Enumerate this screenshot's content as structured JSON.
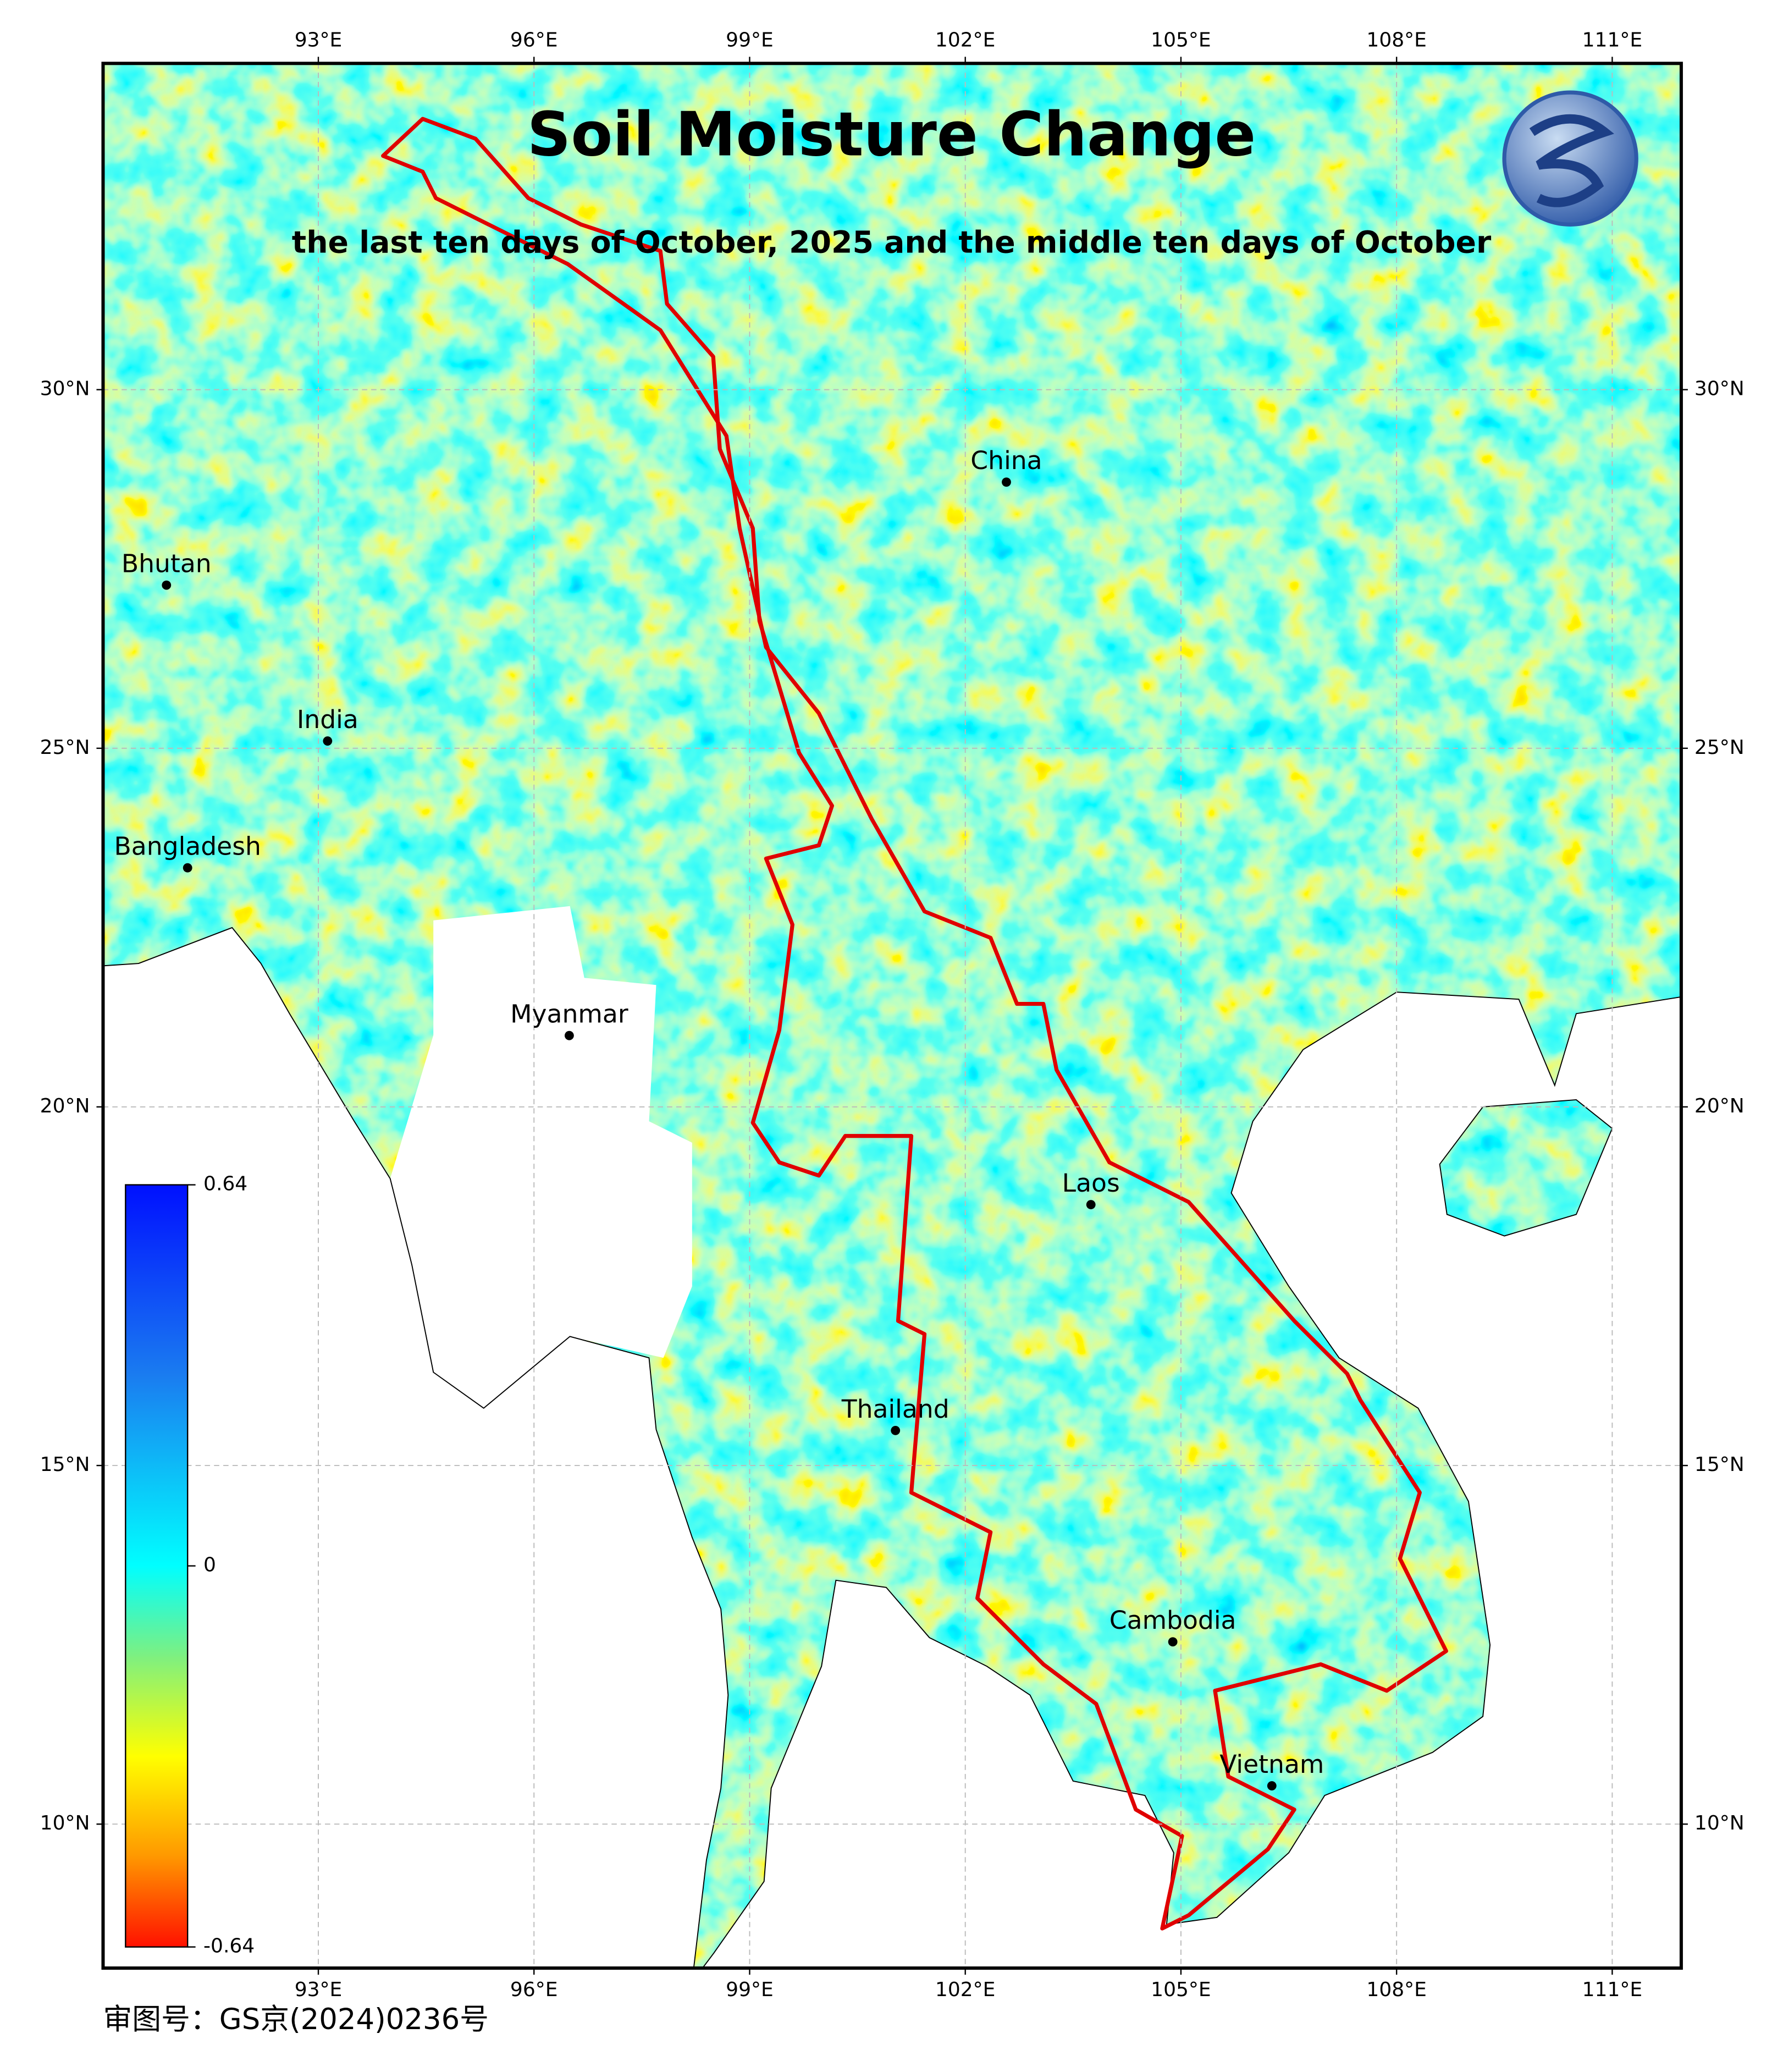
{
  "title": "Soil Moisture Change",
  "subtitle": "the last ten days of October, 2025 and the middle ten days of October",
  "lon_ticks": [
    {
      "value": 93,
      "label": "93°E"
    },
    {
      "value": 96,
      "label": "96°E"
    },
    {
      "value": 99,
      "label": "99°E"
    },
    {
      "value": 102,
      "label": "102°E"
    },
    {
      "value": 105,
      "label": "105°E"
    },
    {
      "value": 108,
      "label": "108°E"
    },
    {
      "value": 111,
      "label": "111°E"
    }
  ],
  "lat_ticks": [
    {
      "value": 30,
      "label": "30°N"
    },
    {
      "value": 25,
      "label": "25°N"
    },
    {
      "value": 20,
      "label": "20°N"
    },
    {
      "value": 15,
      "label": "15°N"
    },
    {
      "value": 10,
      "label": "10°N"
    }
  ],
  "places": [
    "China",
    "Bhutan",
    "India",
    "Bangladesh",
    "Myanmar",
    "Laos",
    "Thailand",
    "Cambodia",
    "Vietnam"
  ],
  "colorbar": {
    "ticks": [
      0.64,
      0,
      -0.64
    ]
  },
  "approval": "审图号：GS京(2024)0236号"
}
